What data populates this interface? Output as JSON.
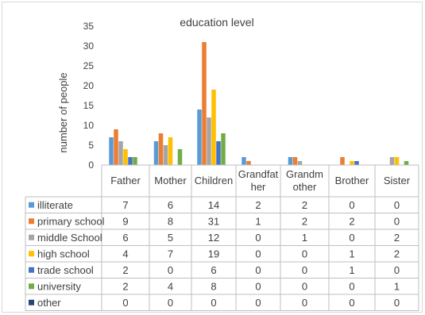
{
  "chart_data": {
    "type": "bar",
    "title": "education level",
    "xlabel": "",
    "ylabel": "number of people",
    "ylim": [
      0,
      35
    ],
    "yticks": [
      0,
      5,
      10,
      15,
      20,
      25,
      30,
      35
    ],
    "grid": false,
    "legend": "data-table",
    "categories": [
      [
        "Father"
      ],
      [
        "Mother"
      ],
      [
        "Children"
      ],
      [
        "Grandfat",
        "her"
      ],
      [
        "Grandm",
        "other"
      ],
      [
        "Brother"
      ],
      [
        "Sister"
      ]
    ],
    "series": [
      {
        "name": "illiterate",
        "color": "#5b9bd5",
        "values": [
          7,
          6,
          14,
          2,
          2,
          0,
          0
        ]
      },
      {
        "name": "primary school",
        "color": "#ed7d31",
        "values": [
          9,
          8,
          31,
          1,
          2,
          2,
          0
        ]
      },
      {
        "name": "middle School",
        "color": "#a5a5a5",
        "values": [
          6,
          5,
          12,
          0,
          1,
          0,
          2
        ]
      },
      {
        "name": "high school",
        "color": "#ffc000",
        "values": [
          4,
          7,
          19,
          0,
          0,
          1,
          2
        ]
      },
      {
        "name": "trade school",
        "color": "#4472c4",
        "values": [
          2,
          0,
          6,
          0,
          0,
          1,
          0
        ]
      },
      {
        "name": "university",
        "color": "#70ad47",
        "values": [
          2,
          4,
          8,
          0,
          0,
          0,
          1
        ]
      },
      {
        "name": "other",
        "color": "#264478",
        "values": [
          0,
          0,
          0,
          0,
          0,
          0,
          0
        ]
      }
    ]
  }
}
